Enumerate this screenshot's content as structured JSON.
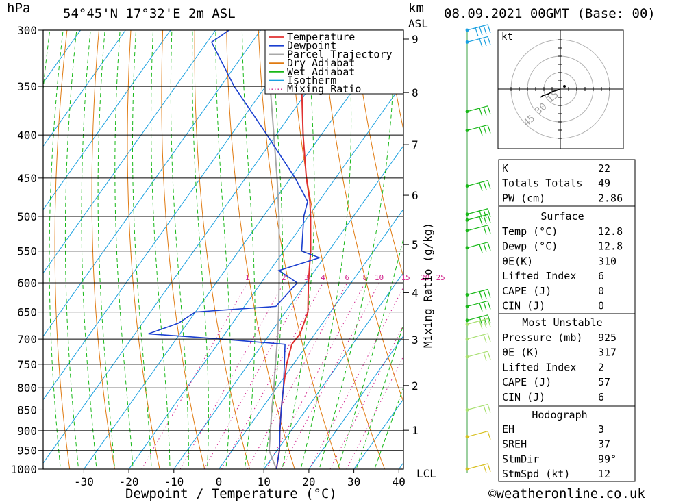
{
  "header": {
    "pressure_unit": "hPa",
    "location": "54°45'N 17°32'E 2m ASL",
    "km_unit": "km",
    "asl": "ASL",
    "datetime": "08.09.2021 00GMT (Base: 00)"
  },
  "footer": {
    "xlabel": "Dewpoint / Temperature (°C)",
    "copyright": "©weatheronline.co.uk",
    "lcl_label": "LCL"
  },
  "legend": {
    "items": [
      {
        "label": "Temperature",
        "color": "#e03030",
        "style": "solid"
      },
      {
        "label": "Dewpoint",
        "color": "#1a3fd0",
        "style": "solid"
      },
      {
        "label": "Parcel Trajectory",
        "color": "#a8a8a8",
        "style": "solid"
      },
      {
        "label": "Dry Adiabat",
        "color": "#e07a10",
        "style": "solid"
      },
      {
        "label": "Wet Adiabat",
        "color": "#18b818",
        "style": "solid"
      },
      {
        "label": "Isotherm",
        "color": "#1aa0e0",
        "style": "solid"
      },
      {
        "label": "Mixing Ratio",
        "color": "#d0208a",
        "style": "dotted"
      }
    ]
  },
  "mixing_ratio_label": "Mixing Ratio (g/kg)",
  "hodograph": {
    "unit_label": "kt",
    "ring_labels": [
      "15",
      "30",
      "45"
    ]
  },
  "indices": {
    "general": [
      {
        "label": "K",
        "value": "22"
      },
      {
        "label": "Totals Totals",
        "value": "49"
      },
      {
        "label": "PW (cm)",
        "value": "2.86"
      }
    ],
    "surface": {
      "title": "Surface",
      "rows": [
        {
          "label": "Temp (°C)",
          "value": "12.8"
        },
        {
          "label": "Dewp (°C)",
          "value": "12.8"
        },
        {
          "label": "θE(K)",
          "value": "310"
        },
        {
          "label": "Lifted Index",
          "value": "6"
        },
        {
          "label": "CAPE (J)",
          "value": "0"
        },
        {
          "label": "CIN (J)",
          "value": "0"
        }
      ]
    },
    "most_unstable": {
      "title": "Most Unstable",
      "rows": [
        {
          "label": "Pressure (mb)",
          "value": "925"
        },
        {
          "label": "θE (K)",
          "value": "317"
        },
        {
          "label": "Lifted Index",
          "value": "2"
        },
        {
          "label": "CAPE (J)",
          "value": "57"
        },
        {
          "label": "CIN (J)",
          "value": "6"
        }
      ]
    },
    "hodograph_box": {
      "title": "Hodograph",
      "rows": [
        {
          "label": "EH",
          "value": "3"
        },
        {
          "label": "SREH",
          "value": "37"
        },
        {
          "label": "StmDir",
          "value": "99°"
        },
        {
          "label": "StmSpd (kt)",
          "value": "12"
        }
      ]
    }
  },
  "chart_data": {
    "type": "line",
    "title": "54°45'N 17°32'E 2m ASL",
    "xlabel": "Dewpoint / Temperature (°C)",
    "ylabel": "hPa",
    "y_scale": "log",
    "xlim": [
      -40,
      40
    ],
    "ylim": [
      1000,
      300
    ],
    "x_ticks": [
      -30,
      -20,
      -10,
      0,
      10,
      20,
      30,
      40
    ],
    "pressure_levels": [
      300,
      350,
      400,
      450,
      500,
      550,
      600,
      650,
      700,
      750,
      800,
      850,
      900,
      950,
      1000
    ],
    "height_km_ticks": [
      1,
      2,
      3,
      4,
      5,
      6,
      7,
      8,
      9
    ],
    "mixing_ratio_ticks": [
      "1",
      "2",
      "3",
      "4",
      "6",
      "8",
      "10",
      "15",
      "20",
      "25"
    ],
    "grid": true,
    "legend_position": "top-right",
    "series": [
      {
        "name": "Temperature",
        "color": "#e03030",
        "points": [
          [
            1000,
            12.8
          ],
          [
            950,
            10.5
          ],
          [
            900,
            7.5
          ],
          [
            850,
            4.5
          ],
          [
            800,
            1.5
          ],
          [
            750,
            -1.5
          ],
          [
            710,
            -3.5
          ],
          [
            690,
            -3.3
          ],
          [
            650,
            -5.0
          ],
          [
            600,
            -9.5
          ],
          [
            550,
            -14.0
          ],
          [
            500,
            -19.5
          ],
          [
            480,
            -22.0
          ],
          [
            450,
            -26.5
          ],
          [
            400,
            -34.0
          ],
          [
            350,
            -42.0
          ],
          [
            300,
            -50.0
          ]
        ]
      },
      {
        "name": "Dewpoint",
        "color": "#1a3fd0",
        "points": [
          [
            1000,
            12.8
          ],
          [
            950,
            10.5
          ],
          [
            900,
            7.5
          ],
          [
            850,
            4.5
          ],
          [
            800,
            1.5
          ],
          [
            750,
            -2.0
          ],
          [
            710,
            -5.0
          ],
          [
            700,
            -20.0
          ],
          [
            690,
            -37.0
          ],
          [
            670,
            -32.0
          ],
          [
            650,
            -30.0
          ],
          [
            640,
            -13.0
          ],
          [
            600,
            -12.0
          ],
          [
            580,
            -18.0
          ],
          [
            560,
            -11.0
          ],
          [
            550,
            -16.0
          ],
          [
            500,
            -21.0
          ],
          [
            480,
            -22.5
          ],
          [
            450,
            -29.0
          ],
          [
            400,
            -42.0
          ],
          [
            350,
            -57.0
          ],
          [
            310,
            -69.0
          ],
          [
            300,
            -67.0
          ]
        ]
      },
      {
        "name": "Parcel Trajectory",
        "color": "#a8a8a8",
        "points": [
          [
            1000,
            12.8
          ],
          [
            950,
            8.2
          ],
          [
            900,
            5.4
          ],
          [
            850,
            2.4
          ],
          [
            800,
            -0.6
          ],
          [
            750,
            -4.0
          ],
          [
            700,
            -7.5
          ],
          [
            650,
            -11.5
          ],
          [
            600,
            -16.0
          ],
          [
            550,
            -21.0
          ],
          [
            500,
            -26.5
          ],
          [
            450,
            -33.0
          ],
          [
            400,
            -40.5
          ],
          [
            350,
            -49.0
          ],
          [
            300,
            -58.0
          ]
        ]
      }
    ],
    "hodograph_points": [
      [
        0,
        0
      ],
      [
        -4,
        4
      ],
      [
        -7,
        6
      ],
      [
        -9,
        9
      ],
      [
        -11,
        12
      ],
      [
        -16,
        16
      ],
      [
        -18,
        20
      ]
    ]
  }
}
